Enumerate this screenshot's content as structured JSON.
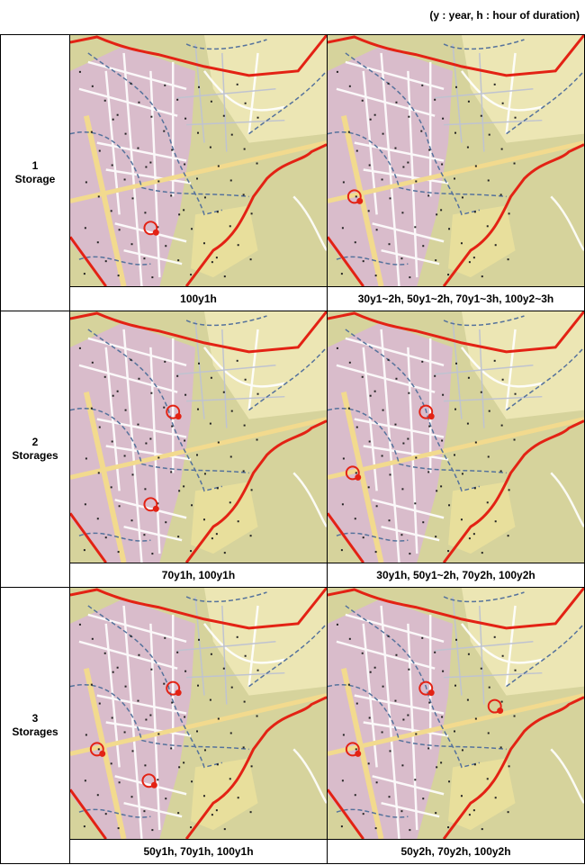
{
  "note": "(y : year, h : hour of duration)",
  "rows": [
    {
      "count": "1",
      "unit": "Storage",
      "captions": [
        "100y1h",
        "30y1~2h, 50y1~2h, 70y1~3h, 100y2~3h"
      ]
    },
    {
      "count": "2",
      "unit": "Storages",
      "captions": [
        "70y1h, 100y1h",
        "30y1h, 50y1~2h, 70y2h, 100y2h"
      ]
    },
    {
      "count": "3",
      "unit": "Storages",
      "captions": [
        "50y1h, 70y1h, 100y1h",
        "50y2h, 70y2h, 100y2h"
      ]
    }
  ]
}
